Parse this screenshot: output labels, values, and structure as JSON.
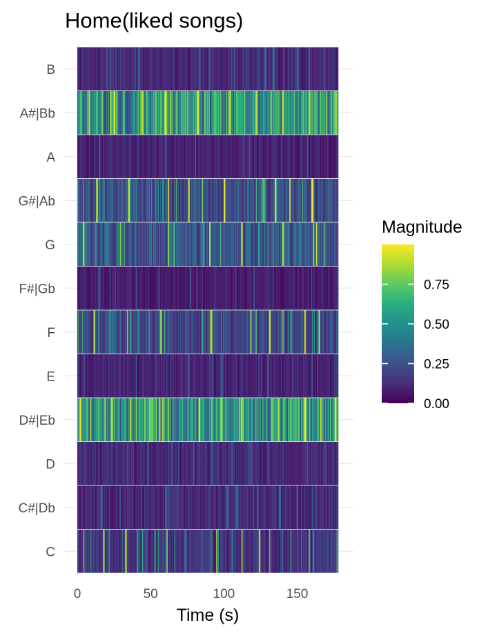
{
  "chart_data": {
    "type": "heatmap",
    "title": "Home(liked songs)",
    "xlabel": "Time (s)",
    "ylabel": "",
    "xlim": [
      0,
      178
    ],
    "x_ticks": [
      0,
      50,
      100,
      150
    ],
    "x_tick_labels": [
      "0",
      "50",
      "100",
      "150"
    ],
    "pitch_classes": [
      "C",
      "C#|Db",
      "D",
      "D#|Eb",
      "E",
      "F",
      "F#|Gb",
      "G",
      "G#|Ab",
      "A",
      "A#|Bb",
      "B"
    ],
    "color_scale": {
      "name": "viridis",
      "legend_title": "Magnitude",
      "range": [
        0,
        1
      ],
      "ticks": [
        0,
        0.25,
        0.5,
        0.75
      ],
      "tick_labels": [
        "0.00",
        "0.25",
        "0.50",
        "0.75"
      ],
      "low_color": "#440154",
      "high_color": "#fde725"
    },
    "grid": true,
    "legend_position": "right",
    "rows": [
      {
        "pitch": "C",
        "mean_magnitude": 0.15,
        "peak_magnitude": 0.95,
        "peak_times": [
          4,
          18,
          33,
          61,
          95,
          112,
          124,
          131,
          158
        ]
      },
      {
        "pitch": "C#|Db",
        "mean_magnitude": 0.12,
        "peak_magnitude": 0.45,
        "peak_times": [
          16,
          29,
          60,
          102,
          138,
          150
        ]
      },
      {
        "pitch": "D",
        "mean_magnitude": 0.12,
        "peak_magnitude": 0.35,
        "peak_times": [
          48,
          79,
          92,
          105
        ]
      },
      {
        "pitch": "D#|Eb",
        "mean_magnitude": 0.55,
        "peak_magnitude": 1.0,
        "peak_times": [
          2,
          9,
          23,
          36,
          56,
          83,
          98,
          112,
          137,
          155,
          166,
          176
        ]
      },
      {
        "pitch": "E",
        "mean_magnitude": 0.1,
        "peak_magnitude": 0.35,
        "peak_times": [
          40,
          65,
          76,
          98,
          130
        ]
      },
      {
        "pitch": "F",
        "mean_magnitude": 0.22,
        "peak_magnitude": 0.95,
        "peak_times": [
          11,
          34,
          57,
          91,
          118,
          131,
          140,
          155,
          165
        ]
      },
      {
        "pitch": "F#|Gb",
        "mean_magnitude": 0.08,
        "peak_magnitude": 0.3,
        "peak_times": [
          15,
          40,
          77,
          108,
          120
        ]
      },
      {
        "pitch": "G",
        "mean_magnitude": 0.3,
        "peak_magnitude": 0.95,
        "peak_times": [
          4,
          29,
          62,
          90,
          112,
          140,
          161,
          163
        ]
      },
      {
        "pitch": "G#|Ab",
        "mean_magnitude": 0.25,
        "peak_magnitude": 1.0,
        "peak_times": [
          13,
          35,
          62,
          76,
          100,
          127,
          135,
          145,
          160
        ]
      },
      {
        "pitch": "A",
        "mean_magnitude": 0.1,
        "peak_magnitude": 0.35,
        "peak_times": [
          15,
          60,
          80,
          117,
          157
        ]
      },
      {
        "pitch": "A#|Bb",
        "mean_magnitude": 0.55,
        "peak_magnitude": 1.0,
        "peak_times": [
          8,
          25,
          44,
          60,
          82,
          104,
          122,
          140,
          158,
          170,
          176
        ]
      },
      {
        "pitch": "B",
        "mean_magnitude": 0.12,
        "peak_magnitude": 0.4,
        "peak_times": [
          20,
          42,
          83,
          107,
          128,
          134,
          150,
          158
        ]
      }
    ]
  }
}
